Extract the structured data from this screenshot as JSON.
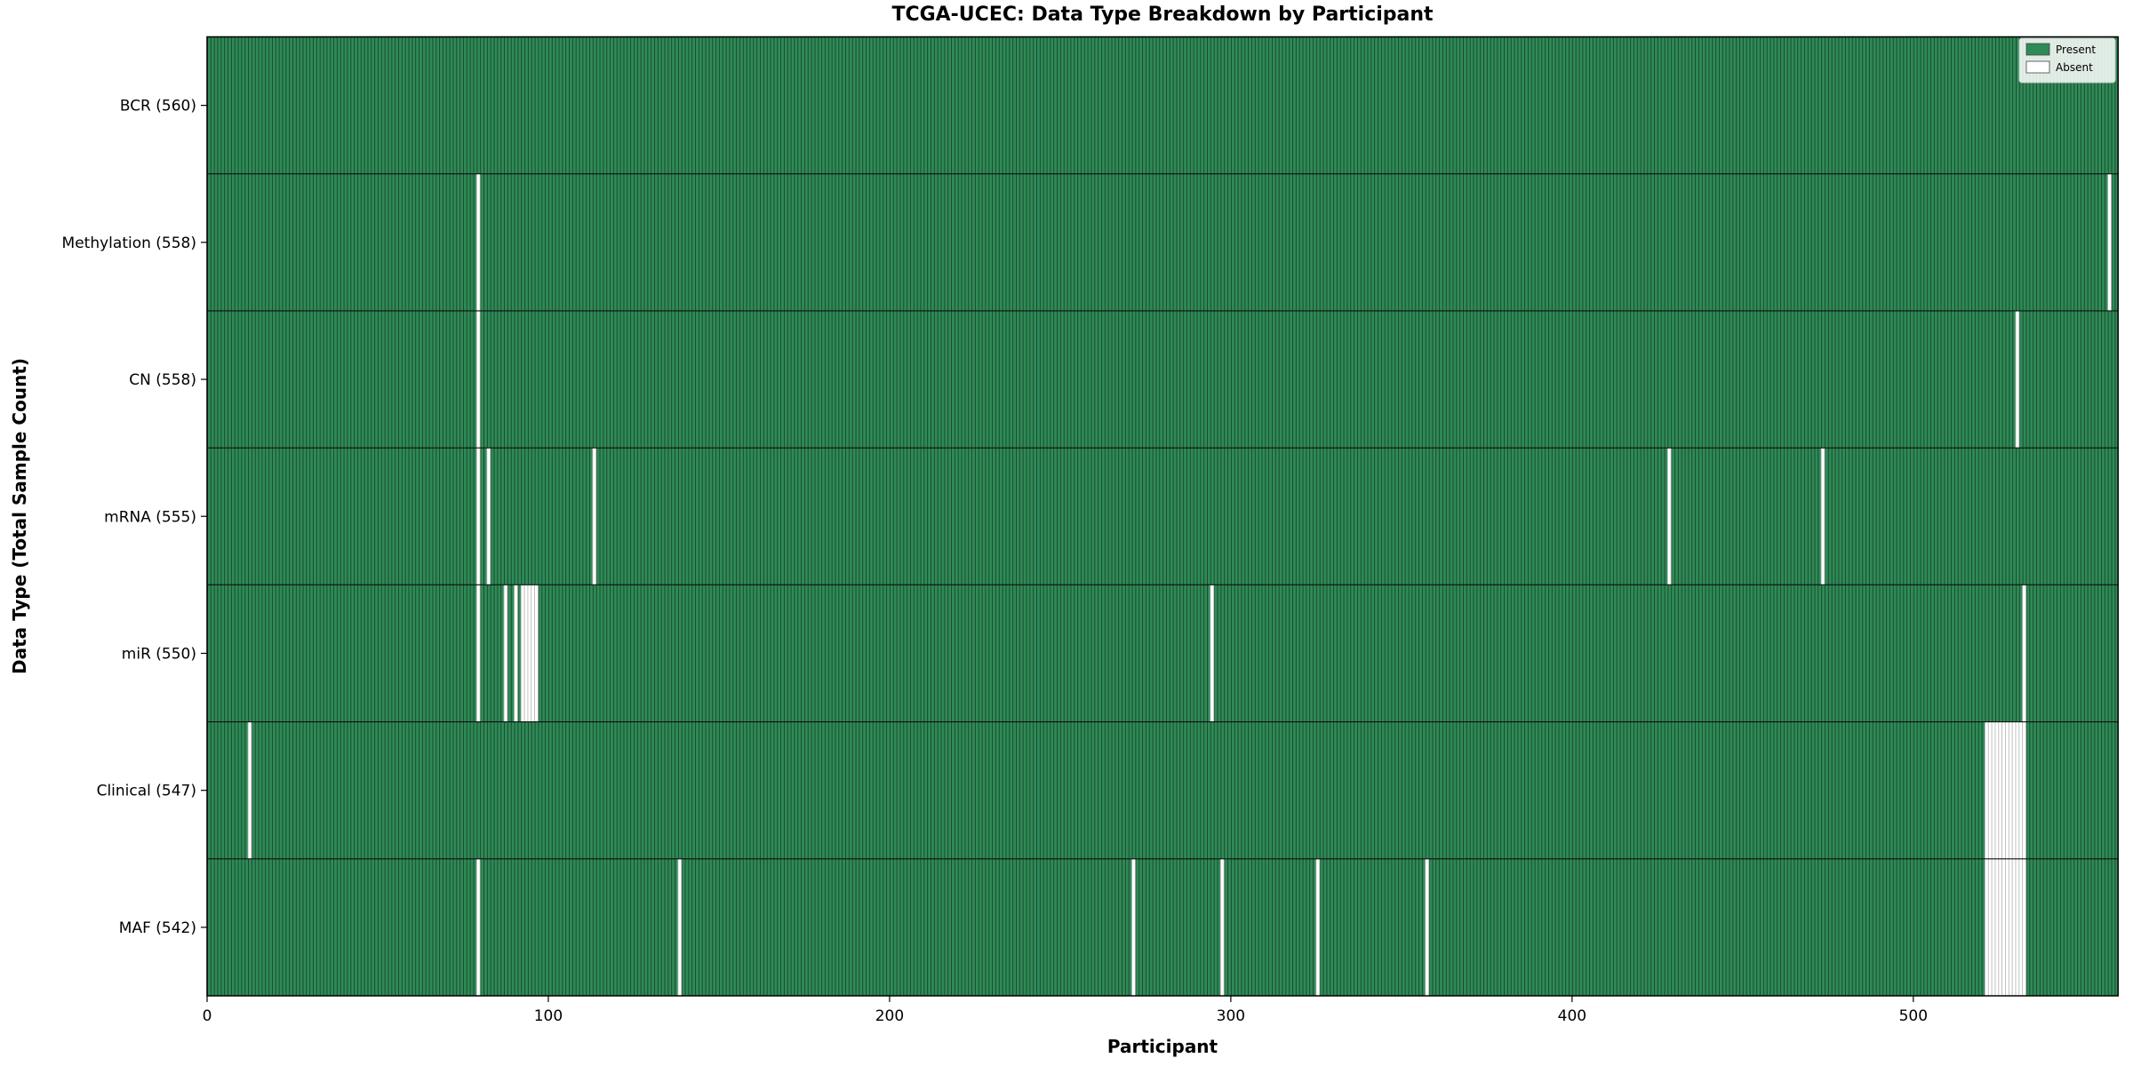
{
  "chart_data": {
    "type": "heatmap",
    "title": "TCGA-UCEC: Data Type Breakdown by Participant",
    "xlabel": "Participant",
    "ylabel": "Data Type (Total Sample Count)",
    "x_ticks": [
      0,
      100,
      200,
      300,
      400,
      500
    ],
    "x_range": [
      0,
      560
    ],
    "n_participants": 560,
    "grid": false,
    "legend_position": "upper right",
    "legend": [
      {
        "label": "Present",
        "color": "#2e8b57"
      },
      {
        "label": "Absent",
        "color": "#ffffff"
      }
    ],
    "colors": {
      "present": "#2e8b57",
      "absent": "#ffffff",
      "bar_edge": "#1b4a2e",
      "absent_edge": "#b9b9b9",
      "row_divider": "#111111",
      "frame": "#000000",
      "text": "#000000",
      "legend_bg": "rgba(255,255,255,0.85)",
      "legend_border": "#c9c9c9",
      "legend_swatch_edge": "#444444"
    },
    "rows": [
      {
        "label": "BCR (560)",
        "data_type": "BCR",
        "present_count": 560,
        "absent_participants": []
      },
      {
        "label": "Methylation (558)",
        "data_type": "Methylation",
        "present_count": 558,
        "absent_participants": [
          79,
          557
        ]
      },
      {
        "label": "CN (558)",
        "data_type": "CN",
        "present_count": 558,
        "absent_participants": [
          79,
          530
        ]
      },
      {
        "label": "mRNA (555)",
        "data_type": "mRNA",
        "present_count": 555,
        "absent_participants": [
          79,
          82,
          113,
          428,
          473
        ]
      },
      {
        "label": "miR (550)",
        "data_type": "miR",
        "present_count": 550,
        "absent_participants": [
          79,
          87,
          90,
          92,
          93,
          94,
          95,
          96,
          294,
          532
        ]
      },
      {
        "label": "Clinical (547)",
        "data_type": "Clinical",
        "present_count": 547,
        "absent_participants": [
          12,
          521,
          522,
          523,
          524,
          525,
          526,
          527,
          528,
          529,
          530,
          531,
          532
        ]
      },
      {
        "label": "MAF (542)",
        "data_type": "MAF",
        "present_count": 542,
        "absent_participants": [
          79,
          138,
          271,
          297,
          325,
          357,
          521,
          522,
          523,
          524,
          525,
          526,
          527,
          528,
          529,
          530,
          531,
          532
        ]
      }
    ]
  }
}
